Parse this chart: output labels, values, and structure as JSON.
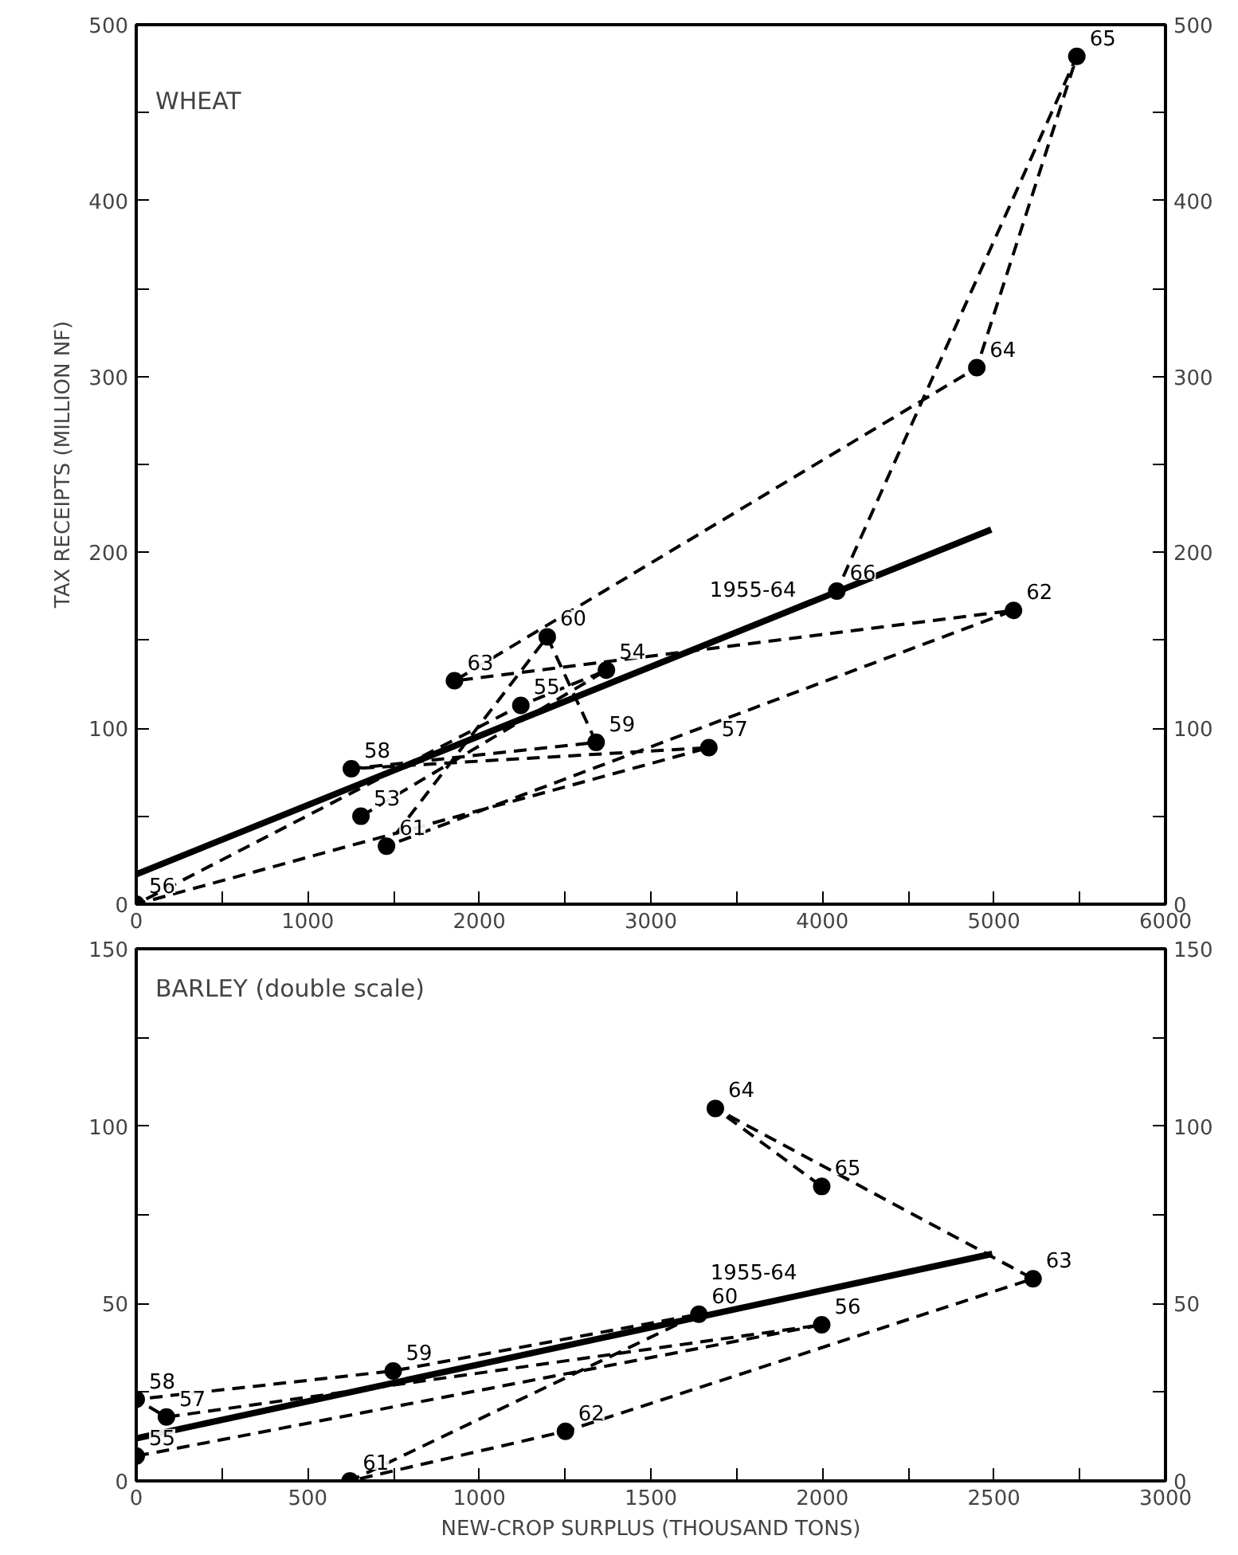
{
  "chart_data": [
    {
      "type": "line",
      "title": "WHEAT",
      "ylabel": "TAX RECEIPTS (MILLION NF)",
      "xlim": [
        0,
        6000
      ],
      "ylim": [
        0,
        500
      ],
      "y2lim": [
        0,
        500
      ],
      "xticks": [
        0,
        {
          "value": 500,
          "label": null
        },
        1000,
        {
          "value": 1500,
          "label": null
        },
        2000,
        {
          "value": 2500,
          "label": null
        },
        3000,
        {
          "value": 3500,
          "label": null
        },
        4000,
        {
          "value": 4500,
          "label": null
        },
        5000,
        {
          "value": 5500,
          "label": null
        },
        6000
      ],
      "yticks": [
        0,
        {
          "value": 50,
          "label": null
        },
        100,
        {
          "value": 150,
          "label": null
        },
        200,
        {
          "value": 250,
          "label": null
        },
        300,
        {
          "value": 350,
          "label": null
        },
        400,
        {
          "value": 450,
          "label": null
        },
        500
      ],
      "y2ticks": [
        0,
        {
          "value": 50,
          "label": null
        },
        100,
        {
          "value": 150,
          "label": null
        },
        200,
        {
          "value": 250,
          "label": null
        },
        300,
        {
          "value": 350,
          "label": null
        },
        400,
        {
          "value": 450,
          "label": null
        },
        500
      ],
      "grid": false,
      "series": [
        {
          "marker": "circle",
          "line_style": "dashed",
          "color": "#000000",
          "x": [
            1310,
            2741,
            2242,
            0,
            3338,
            1254,
            2681,
            2396,
            1459,
            5114,
            1855,
            4900,
            5483,
            4084
          ],
          "values": [
            50,
            133,
            113,
            0,
            89,
            77,
            92,
            152,
            33,
            167,
            127,
            305,
            482,
            178
          ]
        },
        {
          "name": "1955-64",
          "marker": "none",
          "line_style": "solid",
          "color": "#000000",
          "x": [
            0,
            4984
          ],
          "values": [
            17,
            213
          ]
        }
      ],
      "annotations": [
        {
          "text": "53",
          "x": 1310,
          "y": 50
        },
        {
          "text": "54",
          "x": 2741,
          "y": 133
        },
        {
          "text": "55",
          "x": 2242,
          "y": 113
        },
        {
          "text": "56",
          "x": 0,
          "y": 0
        },
        {
          "text": "57",
          "x": 3338,
          "y": 89
        },
        {
          "text": "58",
          "x": 1254,
          "y": 77
        },
        {
          "text": "59",
          "x": 2681,
          "y": 92
        },
        {
          "text": "60",
          "x": 2396,
          "y": 152
        },
        {
          "text": "61",
          "x": 1459,
          "y": 33
        },
        {
          "text": "62",
          "x": 5114,
          "y": 167
        },
        {
          "text": "63",
          "x": 1855,
          "y": 127
        },
        {
          "text": "64",
          "x": 4900,
          "y": 305
        },
        {
          "text": "65",
          "x": 5483,
          "y": 482
        },
        {
          "text": "66",
          "x": 4084,
          "y": 178
        }
      ]
    },
    {
      "type": "line",
      "title": "BARLEY (double scale)",
      "xlabel": "NEW-CROP SURPLUS (THOUSAND TONS)",
      "xlim": [
        0,
        3000
      ],
      "ylim": [
        0,
        150
      ],
      "y2lim": [
        0,
        150
      ],
      "xticks": [
        0,
        {
          "value": 250,
          "label": null
        },
        500,
        {
          "value": 750,
          "label": null
        },
        1000,
        {
          "value": 1250,
          "label": null
        },
        1500,
        {
          "value": 1750,
          "label": null
        },
        2000,
        {
          "value": 2250,
          "label": null
        },
        2500,
        {
          "value": 2750,
          "label": null
        },
        3000
      ],
      "yticks": [
        0,
        {
          "value": 25,
          "label": null
        },
        50,
        {
          "value": 75,
          "label": null
        },
        100,
        {
          "value": 125,
          "label": null
        },
        150
      ],
      "y2ticks": [
        0,
        {
          "value": 25,
          "label": null
        },
        50,
        {
          "value": 75,
          "label": null
        },
        100,
        {
          "value": 125,
          "label": null
        },
        150
      ],
      "grid": false,
      "series": [
        {
          "marker": "circle",
          "line_style": "dashed",
          "color": "#000000",
          "x": [
            0,
            1998,
            88,
            0,
            749,
            1640,
            623,
            1251,
            2614,
            1688,
            1998
          ],
          "values": [
            7,
            44,
            18,
            23,
            31,
            47,
            0,
            14,
            57,
            105,
            83
          ]
        },
        {
          "name": "1955-64",
          "marker": "none",
          "line_style": "solid",
          "color": "#000000",
          "x": [
            0,
            2495
          ],
          "values": [
            12,
            64
          ]
        }
      ],
      "annotations": [
        {
          "text": "55",
          "x": 0,
          "y": 7
        },
        {
          "text": "56",
          "x": 1998,
          "y": 44
        },
        {
          "text": "57",
          "x": 88,
          "y": 18
        },
        {
          "text": "58",
          "x": 0,
          "y": 23
        },
        {
          "text": "59",
          "x": 749,
          "y": 31
        },
        {
          "text": "60",
          "x": 1640,
          "y": 47
        },
        {
          "text": "61",
          "x": 623,
          "y": 0
        },
        {
          "text": "62",
          "x": 1251,
          "y": 14
        },
        {
          "text": "63",
          "x": 2614,
          "y": 57
        },
        {
          "text": "64",
          "x": 1688,
          "y": 105
        },
        {
          "text": "65",
          "x": 1998,
          "y": 83
        }
      ]
    }
  ]
}
